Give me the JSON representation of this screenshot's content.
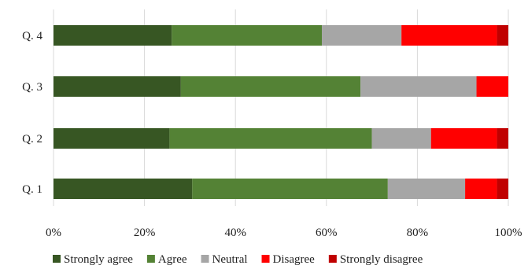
{
  "chart_data": {
    "type": "bar",
    "orientation": "horizontal",
    "stacked": true,
    "percent_stacked": true,
    "categories": [
      "Q. 4",
      "Q. 3",
      "Q. 2",
      "Q. 1"
    ],
    "series": [
      {
        "name": "Strongly agree",
        "color": "#375623",
        "values": [
          26,
          28,
          25.5,
          30.5
        ]
      },
      {
        "name": "Agree",
        "color": "#548235",
        "values": [
          33,
          39.5,
          44.5,
          43
        ]
      },
      {
        "name": "Neutral",
        "color": "#a6a6a6",
        "values": [
          17.5,
          25.5,
          13,
          17
        ]
      },
      {
        "name": "Disagree",
        "color": "#ff0000",
        "values": [
          21,
          7,
          14.5,
          7
        ]
      },
      {
        "name": "Strongly disagree",
        "color": "#c00000",
        "values": [
          2.5,
          0,
          2.5,
          2.5
        ]
      }
    ],
    "xticks": [
      "0%",
      "20%",
      "40%",
      "60%",
      "80%",
      "100%"
    ],
    "xlim": [
      0,
      100
    ],
    "grid": true,
    "legend_position": "bottom"
  }
}
